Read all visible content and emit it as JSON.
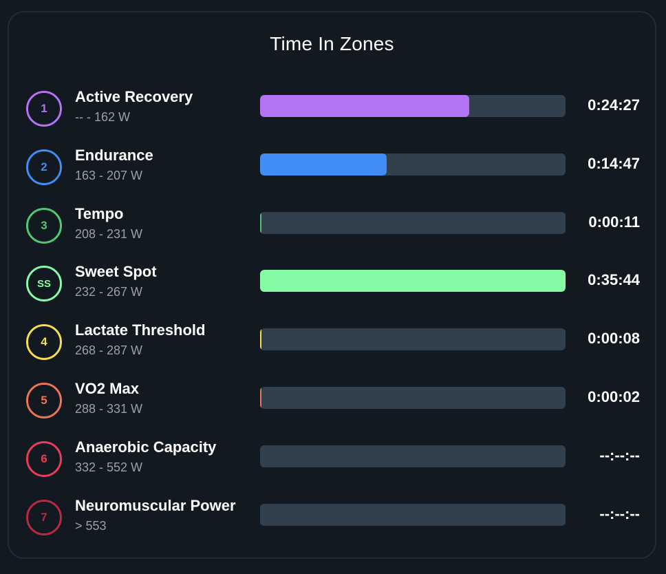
{
  "card": {
    "title": "Time In Zones"
  },
  "colors": {
    "background": "#131920",
    "card_border": "#222a35",
    "bar_track": "#323f4d",
    "range_text": "#9aa0a8"
  },
  "zones": [
    {
      "badge": "1",
      "name": "Active Recovery",
      "range": "-- - 162 W",
      "time": "0:24:27",
      "color": "#b273f5",
      "fill_pct": 68.5
    },
    {
      "badge": "2",
      "name": "Endurance",
      "range": "163 - 207 W",
      "time": "0:14:47",
      "color": "#418cf5",
      "fill_pct": 41.4
    },
    {
      "badge": "3",
      "name": "Tempo",
      "range": "208 - 231 W",
      "time": "0:00:11",
      "color": "#4fc774",
      "fill_pct": 0.5
    },
    {
      "badge": "SS",
      "name": "Sweet Spot",
      "range": "232 - 267 W",
      "time": "0:35:44",
      "color": "#86fba6",
      "fill_pct": 100
    },
    {
      "badge": "4",
      "name": "Lactate Threshold",
      "range": "268 - 287 W",
      "time": "0:00:08",
      "color": "#f5df4d",
      "fill_pct": 0.4
    },
    {
      "badge": "5",
      "name": "VO2 Max",
      "range": "288 - 331 W",
      "time": "0:00:02",
      "color": "#ee7455",
      "fill_pct": 0.2
    },
    {
      "badge": "6",
      "name": "Anaerobic Capacity",
      "range": "332 - 552 W",
      "time": "--:--:--",
      "color": "#e93c5a",
      "fill_pct": 0
    },
    {
      "badge": "7",
      "name": "Neuromuscular Power",
      "range": "> 553",
      "time": "--:--:--",
      "color": "#b82a40",
      "fill_pct": 0
    }
  ],
  "chart_data": {
    "type": "bar",
    "title": "Time In Zones",
    "orientation": "horizontal",
    "categories": [
      "Active Recovery",
      "Endurance",
      "Tempo",
      "Sweet Spot",
      "Lactate Threshold",
      "VO2 Max",
      "Anaerobic Capacity",
      "Neuromuscular Power"
    ],
    "category_ranges": [
      "-- - 162 W",
      "163 - 207 W",
      "208 - 231 W",
      "232 - 267 W",
      "268 - 287 W",
      "288 - 331 W",
      "332 - 552 W",
      "> 553"
    ],
    "values_seconds": [
      1467,
      887,
      11,
      2144,
      8,
      2,
      0,
      0
    ],
    "value_labels": [
      "0:24:27",
      "0:14:47",
      "0:00:11",
      "0:35:44",
      "0:00:08",
      "0:00:02",
      "--:--:--",
      "--:--:--"
    ],
    "colors": [
      "#b273f5",
      "#418cf5",
      "#4fc774",
      "#86fba6",
      "#f5df4d",
      "#ee7455",
      "#e93c5a",
      "#b82a40"
    ],
    "xlabel": "",
    "ylabel": "",
    "xlim": [
      0,
      2144
    ],
    "grid": false,
    "legend": "none"
  }
}
